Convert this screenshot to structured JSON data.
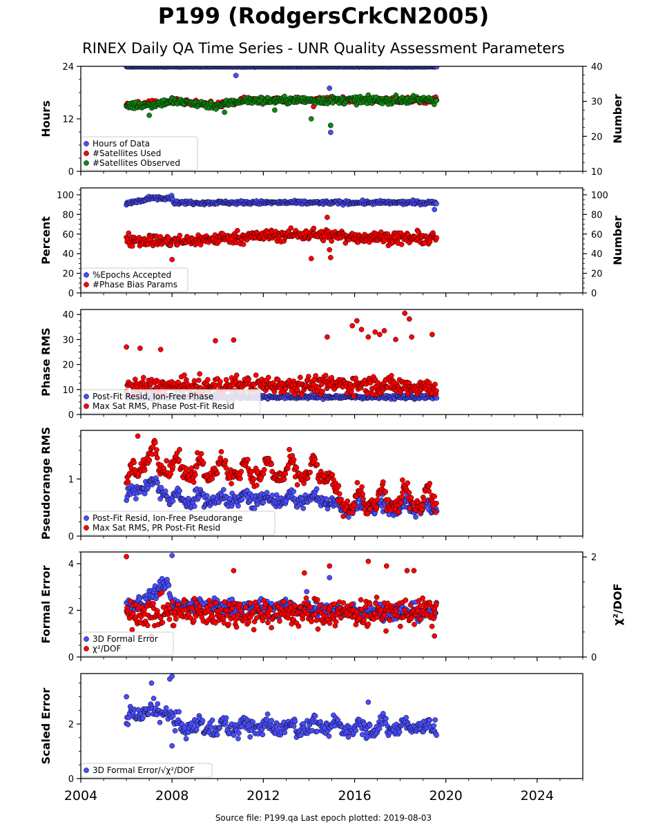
{
  "title": "P199 (RodgersCrkCN2005)",
  "subtitle": "RINEX Daily QA Time Series - UNR Quality Assessment Parameters",
  "footer": "Source file: P199.qa Last epoch plotted: 2019-08-03",
  "colors": {
    "blue": "#4a4dff",
    "red": "#ff0000",
    "green": "#118811",
    "navy": "#0a0a4a",
    "edge": "#000000"
  },
  "chart_data": {
    "type": "scatter",
    "x_axis": {
      "range": [
        2004,
        2026
      ],
      "ticks": [
        2004,
        2008,
        2012,
        2016,
        2020,
        2024
      ],
      "tick_labels": [
        "2004",
        "2008",
        "2012",
        "2016",
        "2020",
        "2024"
      ]
    },
    "data_span": [
      2006.0,
      2019.59
    ],
    "panels": [
      {
        "id": "hours",
        "ylabel": "Hours",
        "ylim": [
          0,
          24
        ],
        "yticks": [
          0,
          12,
          24
        ],
        "right_ylabel": "Number",
        "right_ylim": [
          10,
          40
        ],
        "right_yticks": [
          10,
          20,
          30,
          40
        ],
        "legend": [
          "Hours of Data",
          "#Satellites Used",
          "#Satellites Observed"
        ],
        "series": [
          {
            "name": "Hours of Data",
            "axis": "left",
            "color": "blue",
            "baseline": [
              [
                2006.0,
                23.9
              ],
              [
                2019.6,
                23.9
              ]
            ],
            "jitter": 0.05,
            "outliers": [
              [
                2010.8,
                21.9
              ],
              [
                2014.9,
                19.0
              ],
              [
                2014.95,
                8.9
              ],
              [
                2008.0,
                16.8
              ],
              [
                2009.7,
                16.0
              ]
            ]
          },
          {
            "name": "#Satellites Used",
            "axis": "left",
            "color": "red",
            "baseline": [
              [
                2006.0,
                15.0
              ],
              [
                2007.0,
                15.5
              ],
              [
                2008.0,
                16.0
              ],
              [
                2010.0,
                15.0
              ],
              [
                2011.0,
                16.2
              ],
              [
                2019.6,
                16.3
              ]
            ],
            "jitter": 0.6,
            "outliers": [
              [
                2009.7,
                16.0
              ],
              [
                2014.2,
                14.8
              ],
              [
                2014.95,
                10.5
              ]
            ]
          },
          {
            "name": "#Satellites Observed",
            "axis": "left",
            "color": "green",
            "baseline": [
              [
                2006.0,
                15.0
              ],
              [
                2007.0,
                15.2
              ],
              [
                2008.0,
                16.0
              ],
              [
                2010.0,
                15.0
              ],
              [
                2011.0,
                16.2
              ],
              [
                2019.6,
                16.3
              ]
            ],
            "jitter": 0.8,
            "outliers": [
              [
                2007.0,
                12.8
              ],
              [
                2014.1,
                12.0
              ],
              [
                2014.95,
                10.5
              ],
              [
                2010.3,
                13.5
              ],
              [
                2012.5,
                14.0
              ]
            ]
          }
        ]
      },
      {
        "id": "percent",
        "ylabel": "Percent",
        "ylim": [
          0,
          107
        ],
        "yticks": [
          0,
          20,
          40,
          60,
          80,
          100
        ],
        "right_ylabel": "Number",
        "right_ylim": [
          0,
          107
        ],
        "right_yticks": [
          0,
          20,
          40,
          60,
          80,
          100
        ],
        "legend": [
          "%Epochs Accepted",
          "#Phase Bias Params"
        ],
        "series": [
          {
            "name": "%Epochs Accepted",
            "axis": "left",
            "color": "blue",
            "baseline": [
              [
                2006.0,
                91
              ],
              [
                2006.8,
                94
              ],
              [
                2007.0,
                97
              ],
              [
                2008.0,
                97
              ],
              [
                2008.1,
                92
              ],
              [
                2010.0,
                92
              ],
              [
                2019.6,
                92
              ]
            ],
            "jitter": 1.8,
            "outliers": [
              [
                2019.5,
                85
              ]
            ]
          },
          {
            "name": "#Phase Bias Params",
            "axis": "left",
            "color": "red",
            "baseline": [
              [
                2006.0,
                55
              ],
              [
                2008.0,
                52
              ],
              [
                2011.0,
                57
              ],
              [
                2014.0,
                60
              ],
              [
                2016.0,
                57
              ],
              [
                2019.6,
                55
              ]
            ],
            "jitter": 6,
            "outliers": [
              [
                2008.0,
                34
              ],
              [
                2014.1,
                35
              ],
              [
                2014.95,
                36
              ],
              [
                2014.9,
                44
              ],
              [
                2014.8,
                77
              ]
            ]
          }
        ]
      },
      {
        "id": "phase",
        "ylabel": "Phase RMS",
        "ylim": [
          0,
          42
        ],
        "yticks": [
          0,
          10,
          20,
          30,
          40
        ],
        "legend": [
          "Post-Fit Resid, Ion-Free Phase",
          "Max Sat RMS, Phase Post-Fit Resid"
        ],
        "series": [
          {
            "name": "Post-Fit Resid, Ion-Free Phase",
            "axis": "left",
            "color": "blue",
            "baseline": [
              [
                2006.0,
                7
              ],
              [
                2019.6,
                7
              ]
            ],
            "jitter": 0.8,
            "outliers": []
          },
          {
            "name": "Max Sat RMS, Phase Post-Fit Resid",
            "axis": "left",
            "color": "red",
            "baseline": [
              [
                2006.0,
                11
              ],
              [
                2010.0,
                11
              ],
              [
                2011.0,
                12
              ],
              [
                2016.0,
                12
              ],
              [
                2019.6,
                11
              ]
            ],
            "jitter": 3.5,
            "outliers": [
              [
                2006.0,
                27
              ],
              [
                2006.6,
                26.5
              ],
              [
                2007.5,
                26
              ],
              [
                2009.9,
                29.5
              ],
              [
                2010.7,
                29.8
              ],
              [
                2014.8,
                31
              ],
              [
                2015.9,
                35.5
              ],
              [
                2016.3,
                34
              ],
              [
                2016.1,
                37.5
              ],
              [
                2016.6,
                31
              ],
              [
                2016.9,
                33
              ],
              [
                2017.1,
                32
              ],
              [
                2017.3,
                33.5
              ],
              [
                2017.8,
                30
              ],
              [
                2018.2,
                40.5
              ],
              [
                2018.4,
                38.2
              ],
              [
                2018.5,
                31
              ],
              [
                2019.4,
                32
              ]
            ]
          }
        ]
      },
      {
        "id": "pseudorange",
        "ylabel": "Pseudorange RMS",
        "ylim": [
          0,
          1.85
        ],
        "yticks": [
          0,
          1
        ],
        "legend": [
          "Post-Fit Resid, Ion-Free Pseudorange",
          "Max Sat RMS, PR Post-Fit Resid"
        ],
        "series": [
          {
            "name": "Post-Fit Resid, Ion-Free Pseudorange",
            "axis": "left",
            "color": "blue",
            "baseline": [
              [
                2006.0,
                0.6
              ],
              [
                2007.0,
                0.9
              ],
              [
                2008.0,
                0.6
              ],
              [
                2015.0,
                0.6
              ],
              [
                2015.1,
                0.45
              ],
              [
                2019.6,
                0.45
              ]
            ],
            "jitter": 0.12,
            "seasonal": 0.15,
            "outliers": []
          },
          {
            "name": "Max Sat RMS, PR Post-Fit Resid",
            "axis": "left",
            "color": "red",
            "baseline": [
              [
                2006.0,
                0.8
              ],
              [
                2007.0,
                1.35
              ],
              [
                2008.0,
                1.1
              ],
              [
                2011.0,
                1.05
              ],
              [
                2015.0,
                1.0
              ],
              [
                2015.1,
                0.52
              ],
              [
                2019.6,
                0.55
              ]
            ],
            "jitter": 0.14,
            "seasonal": 0.3,
            "outliers": [
              [
                2006.5,
                1.75
              ],
              [
                2018.1,
                0.98
              ]
            ]
          }
        ]
      },
      {
        "id": "formal",
        "ylabel": "Formal Error",
        "ylim": [
          0,
          4.5
        ],
        "yticks": [
          0,
          2,
          4
        ],
        "right_ylabel": "χ²/DOF",
        "right_ylim": [
          0,
          2.1
        ],
        "right_yticks": [
          0,
          2
        ],
        "legend": [
          "3D Formal Error",
          "χ²/DOF"
        ],
        "series": [
          {
            "name": "3D Formal Error",
            "axis": "left",
            "color": "blue",
            "baseline": [
              [
                2006.0,
                2.1
              ],
              [
                2007.0,
                2.5
              ],
              [
                2007.8,
                3.3
              ],
              [
                2008.0,
                2.2
              ],
              [
                2019.6,
                1.9
              ]
            ],
            "jitter": 0.35,
            "outliers": [
              [
                2008.0,
                4.35
              ],
              [
                2014.9,
                3.4
              ],
              [
                2013.9,
                2.8
              ]
            ]
          },
          {
            "name": "χ²/DOF",
            "axis": "left",
            "color": "red",
            "baseline": [
              [
                2006.0,
                1.9
              ],
              [
                2019.6,
                1.9
              ]
            ],
            "jitter": 0.6,
            "outliers": [
              [
                2006.0,
                4.3
              ],
              [
                2010.7,
                3.7
              ],
              [
                2013.8,
                3.6
              ],
              [
                2014.9,
                3.9
              ],
              [
                2016.6,
                4.1
              ],
              [
                2017.4,
                3.9
              ],
              [
                2018.3,
                3.7
              ],
              [
                2018.6,
                3.7
              ],
              [
                2007.1,
                0.9
              ],
              [
                2019.5,
                0.9
              ]
            ]
          }
        ]
      },
      {
        "id": "scaled",
        "ylabel": "Scaled Error",
        "ylim": [
          0,
          3.85
        ],
        "yticks": [
          0,
          2
        ],
        "legend": [
          "3D Formal Error/√χ²/DOF"
        ],
        "series": [
          {
            "name": "3D Formal Error/√χ²/DOF",
            "axis": "left",
            "color": "blue",
            "baseline": [
              [
                2006.0,
                2.1
              ],
              [
                2007.0,
                2.4
              ],
              [
                2008.0,
                2.3
              ],
              [
                2008.1,
                1.8
              ],
              [
                2019.6,
                1.8
              ]
            ],
            "jitter": 0.3,
            "seasonal": 0.3,
            "outliers": [
              [
                2006.0,
                3.0
              ],
              [
                2007.1,
                3.5
              ],
              [
                2007.9,
                3.65
              ],
              [
                2008.0,
                3.75
              ],
              [
                2016.6,
                2.8
              ],
              [
                2008.0,
                1.2
              ]
            ]
          }
        ]
      }
    ]
  }
}
